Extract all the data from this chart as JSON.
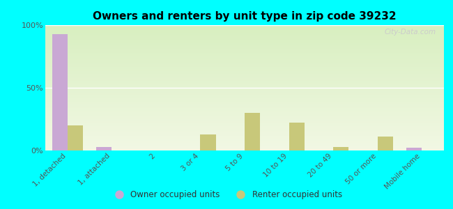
{
  "title": "Owners and renters by unit type in zip code 39232",
  "categories": [
    "1, detached",
    "1, attached",
    "2",
    "3 or 4",
    "5 to 9",
    "10 to 19",
    "20 to 49",
    "50 or more",
    "Mobile home"
  ],
  "owner_values": [
    93,
    3,
    0,
    0,
    0,
    0,
    0,
    0,
    2
  ],
  "renter_values": [
    20,
    0,
    0,
    13,
    30,
    22,
    3,
    11,
    0
  ],
  "owner_color": "#c9a8d4",
  "renter_color": "#c8c87a",
  "background_color": "#00ffff",
  "plot_bg_colors": [
    "#d8efc0",
    "#f2f8e4"
  ],
  "ylim": [
    0,
    100
  ],
  "yticks": [
    0,
    50,
    100
  ],
  "ytick_labels": [
    "0%",
    "50%",
    "100%"
  ],
  "watermark": "City-Data.com",
  "legend_owner": "Owner occupied units",
  "legend_renter": "Renter occupied units",
  "bar_width": 0.35
}
